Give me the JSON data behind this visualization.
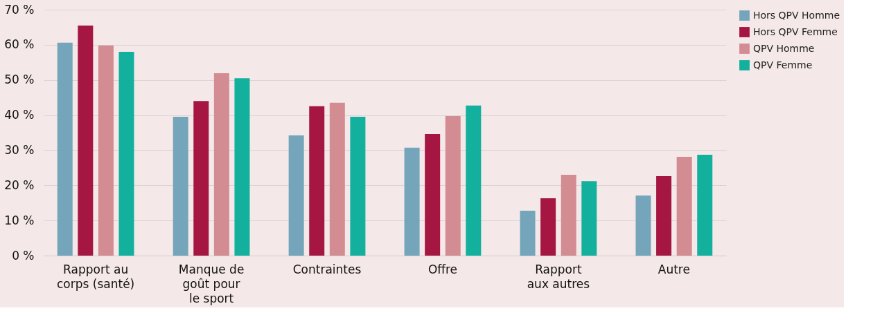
{
  "chart_data": {
    "type": "bar",
    "categories": [
      "Rapport au\ncorps (santé)",
      "Manque de\ngoût pour\nle sport",
      "Contraintes",
      "Offre",
      "Rapport\naux autres",
      "Autre"
    ],
    "series": [
      {
        "name": "Hors QPV Homme",
        "color": "#74a5bb",
        "values": [
          60.6,
          39.5,
          34.2,
          30.7,
          12.8,
          17.1
        ]
      },
      {
        "name": "Hors QPV Femme",
        "color": "#a51642",
        "values": [
          65.5,
          44.0,
          42.5,
          34.6,
          16.3,
          22.6
        ]
      },
      {
        "name": "QPV Homme",
        "color": "#d48c93",
        "values": [
          59.8,
          51.9,
          43.5,
          39.7,
          23.0,
          28.1
        ]
      },
      {
        "name": "QPV Femme",
        "color": "#12b09d",
        "values": [
          58.0,
          50.5,
          39.5,
          42.7,
          21.2,
          28.7
        ]
      }
    ],
    "ylim": [
      0,
      70
    ],
    "yticks": [
      {
        "value": 0,
        "label": "0 %"
      },
      {
        "value": 10,
        "label": "10 %"
      },
      {
        "value": 20,
        "label": "20 %"
      },
      {
        "value": 30,
        "label": "30 %"
      },
      {
        "value": 40,
        "label": "40 %"
      },
      {
        "value": 50,
        "label": "50 %"
      },
      {
        "value": 60,
        "label": "60 %"
      },
      {
        "value": 70,
        "label": "70 %"
      }
    ],
    "grid": "y",
    "legend": "top right"
  }
}
